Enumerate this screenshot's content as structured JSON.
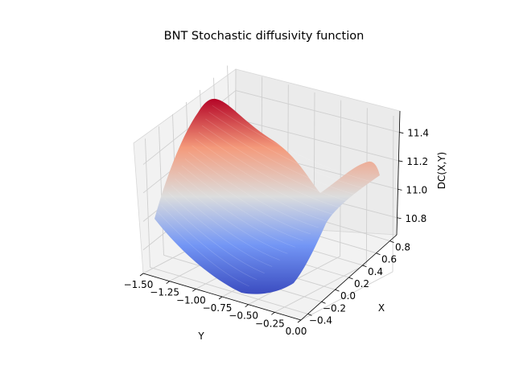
{
  "chart_data": {
    "type": "surface3d",
    "title": "BNT Stochastic diffusivity function",
    "xlabel": "X",
    "ylabel": "Y",
    "zlabel": "DC(X,Y)",
    "xlim": [
      -0.5,
      0.9
    ],
    "ylim": [
      -1.5,
      0.0
    ],
    "zlim": [
      10.68,
      11.55
    ],
    "x_ticks": [
      -0.4,
      -0.2,
      0.0,
      0.2,
      0.4,
      0.6,
      0.8
    ],
    "x_tick_labels": [
      "−0.4",
      "−0.2",
      "0.0",
      "0.2",
      "0.4",
      "0.6",
      "0.8"
    ],
    "y_ticks": [
      -1.5,
      -1.25,
      -1.0,
      -0.75,
      -0.5,
      -0.25,
      0.0
    ],
    "y_tick_labels": [
      "−1.50",
      "−1.25",
      "−1.00",
      "−0.75",
      "−0.50",
      "−0.25",
      "0.00"
    ],
    "z_ticks": [
      10.8,
      11.0,
      11.2,
      11.4
    ],
    "z_tick_labels": [
      "10.8",
      "11.0",
      "11.2",
      "11.4"
    ],
    "colormap": "coolwarm",
    "grid": true,
    "surface_samples": {
      "x": [
        -0.5,
        0.2,
        0.9
      ],
      "y": [
        -1.5,
        -0.75,
        0.0
      ],
      "z": [
        [
          10.95,
          10.68,
          10.75
        ],
        [
          11.5,
          11.0,
          11.15
        ],
        [
          11.05,
          10.9,
          11.2
        ]
      ]
    }
  }
}
